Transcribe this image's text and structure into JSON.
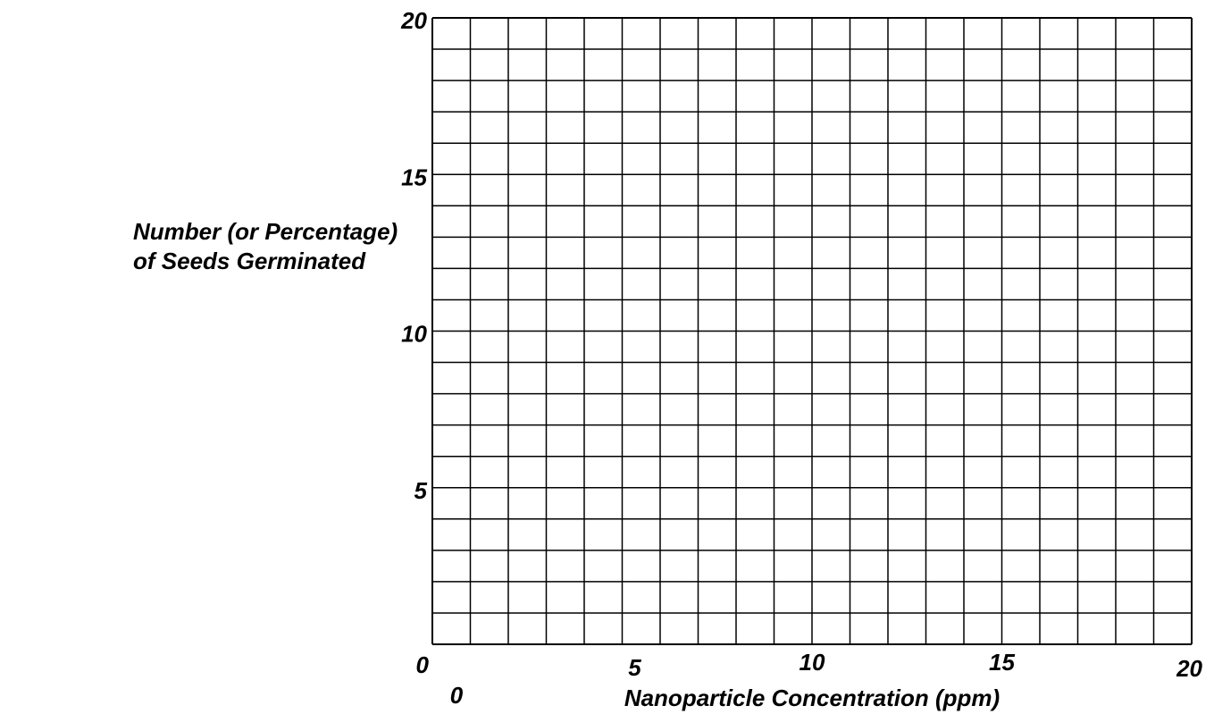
{
  "chart_data": {
    "type": "scatter",
    "xlabel": "Nanoparticle Concentration (ppm)",
    "ylabel_lines": [
      "Number (or Percentage)",
      "of Seeds Germinated"
    ],
    "xlim": [
      0,
      20
    ],
    "ylim": [
      0,
      20
    ],
    "x_ticks": [
      {
        "value": 0,
        "label": "0"
      },
      {
        "value": 5,
        "label": "5"
      },
      {
        "value": 10,
        "label": "10"
      },
      {
        "value": 15,
        "label": "15"
      },
      {
        "value": 20,
        "label": "20"
      }
    ],
    "y_ticks": [
      {
        "value": 5,
        "label": "5"
      },
      {
        "value": 10,
        "label": "10"
      },
      {
        "value": 15,
        "label": "15"
      },
      {
        "value": 20,
        "label": "20"
      }
    ],
    "y_origin_label": "0",
    "x_grid_divisions": 20,
    "y_grid_divisions": 20,
    "grid": true,
    "series": [],
    "colors": {
      "grid": "#000000",
      "text": "#000000",
      "background": "#ffffff"
    }
  }
}
